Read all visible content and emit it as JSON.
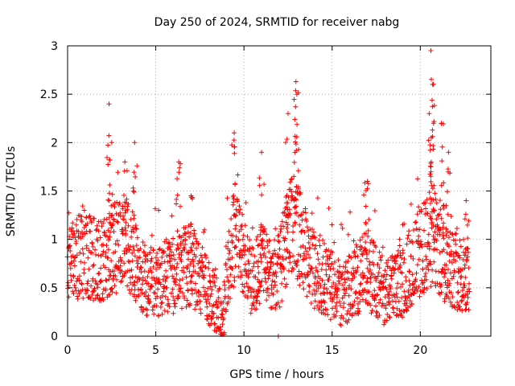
{
  "chart_data": {
    "type": "scatter",
    "title": "Day 250 of 2024, SRMTID for receiver nabg",
    "xlabel": "GPS time / hours",
    "ylabel": "SRMTID / TECUs",
    "xlim": [
      0,
      24
    ],
    "ylim": [
      0,
      3
    ],
    "x_ticks": [
      0,
      5,
      10,
      15,
      20
    ],
    "x_tick_labels": [
      "0",
      "5",
      "10",
      "15",
      "20"
    ],
    "y_ticks": [
      0,
      0.5,
      1,
      1.5,
      2,
      2.5,
      3
    ],
    "y_tick_labels": [
      "0",
      "0.5",
      "1",
      "1.5",
      "2",
      "2.5",
      "3"
    ],
    "grid": true,
    "marker": "+",
    "color": "#ff0000",
    "series": [
      {
        "name": "SRMTID",
        "trend_points": [
          [
            0.0,
            0.85
          ],
          [
            0.5,
            0.8
          ],
          [
            1.0,
            0.85
          ],
          [
            1.5,
            0.8
          ],
          [
            2.0,
            0.75
          ],
          [
            2.5,
            0.9
          ],
          [
            3.0,
            0.95
          ],
          [
            3.5,
            0.9
          ],
          [
            4.0,
            0.65
          ],
          [
            4.5,
            0.6
          ],
          [
            5.0,
            0.55
          ],
          [
            5.5,
            0.6
          ],
          [
            6.0,
            0.6
          ],
          [
            6.5,
            0.7
          ],
          [
            7.0,
            0.75
          ],
          [
            7.5,
            0.6
          ],
          [
            8.0,
            0.45
          ],
          [
            8.5,
            0.3
          ],
          [
            8.8,
            0.1
          ],
          [
            9.0,
            0.6
          ],
          [
            9.5,
            1.1
          ],
          [
            10.0,
            0.8
          ],
          [
            10.5,
            0.55
          ],
          [
            11.0,
            0.8
          ],
          [
            11.5,
            0.6
          ],
          [
            12.0,
            0.65
          ],
          [
            12.5,
            1.1
          ],
          [
            13.0,
            1.1
          ],
          [
            13.5,
            0.85
          ],
          [
            14.0,
            0.7
          ],
          [
            14.5,
            0.6
          ],
          [
            15.0,
            0.5
          ],
          [
            15.5,
            0.45
          ],
          [
            16.0,
            0.5
          ],
          [
            16.5,
            0.6
          ],
          [
            17.0,
            0.7
          ],
          [
            17.5,
            0.55
          ],
          [
            18.0,
            0.45
          ],
          [
            18.5,
            0.5
          ],
          [
            19.0,
            0.55
          ],
          [
            19.5,
            0.75
          ],
          [
            20.0,
            0.85
          ],
          [
            20.5,
            1.0
          ],
          [
            21.0,
            0.9
          ],
          [
            21.5,
            0.75
          ],
          [
            22.0,
            0.7
          ],
          [
            22.5,
            0.6
          ],
          [
            22.8,
            0.65
          ]
        ],
        "peaks": [
          [
            2.35,
            2.4
          ],
          [
            2.5,
            2.0
          ],
          [
            3.25,
            1.8
          ],
          [
            3.8,
            2.0
          ],
          [
            6.3,
            1.8
          ],
          [
            7.0,
            1.45
          ],
          [
            9.45,
            2.1
          ],
          [
            11.0,
            1.9
          ],
          [
            12.5,
            2.3
          ],
          [
            13.0,
            2.5
          ],
          [
            12.95,
            2.63
          ],
          [
            17.0,
            1.6
          ],
          [
            20.6,
            2.95
          ],
          [
            20.7,
            2.6
          ],
          [
            20.75,
            2.2
          ],
          [
            21.2,
            2.2
          ],
          [
            21.6,
            1.9
          ],
          [
            22.6,
            1.4
          ]
        ]
      }
    ]
  }
}
